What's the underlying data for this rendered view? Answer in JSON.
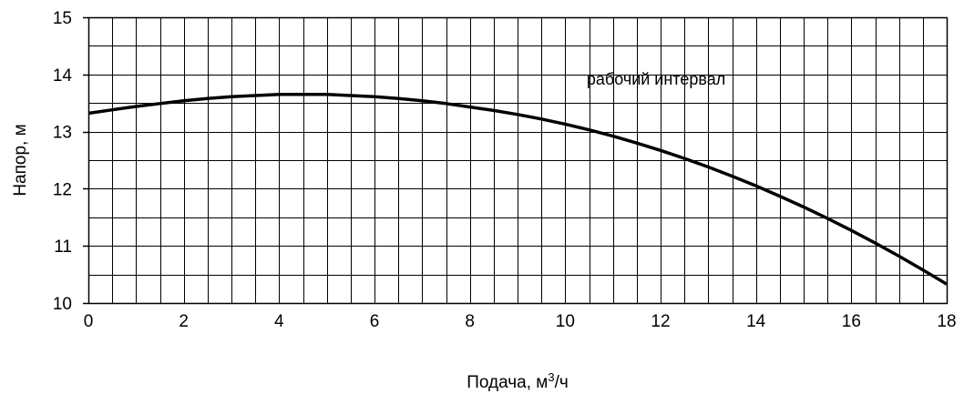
{
  "chart_data": {
    "type": "line",
    "xlabel": "Подача, м",
    "xlabel_sup": "3",
    "xlabel_tail": "/ч",
    "ylabel": "Напор, м",
    "xlim": [
      0,
      18
    ],
    "ylim": [
      10,
      15
    ],
    "x_ticks": [
      "0",
      "2",
      "4",
      "6",
      "8",
      "10",
      "12",
      "14",
      "16",
      "18"
    ],
    "y_ticks": [
      "10",
      "11",
      "12",
      "13",
      "14",
      "15"
    ],
    "grid": true,
    "annotation": "рабочий интервал",
    "series": [
      {
        "x": [
          0,
          0.5,
          1,
          1.5,
          2,
          2.5,
          3,
          3.5,
          4,
          4.5,
          5,
          5.5,
          6,
          6.5,
          7,
          7.5,
          8,
          8.5,
          9,
          9.5,
          10,
          10.5,
          11,
          11.5,
          12,
          12.5,
          13,
          13.5,
          14,
          14.5,
          15,
          15.5,
          16,
          16.5,
          17,
          17.5,
          18
        ],
        "y": [
          13.32,
          13.38,
          13.44,
          13.49,
          13.54,
          13.58,
          13.61,
          13.63,
          13.65,
          13.65,
          13.65,
          13.63,
          13.61,
          13.58,
          13.54,
          13.49,
          13.43,
          13.37,
          13.3,
          13.22,
          13.13,
          13.03,
          12.92,
          12.8,
          12.67,
          12.53,
          12.38,
          12.22,
          12.05,
          11.87,
          11.68,
          11.48,
          11.27,
          11.05,
          10.82,
          10.58,
          10.33
        ]
      }
    ]
  }
}
